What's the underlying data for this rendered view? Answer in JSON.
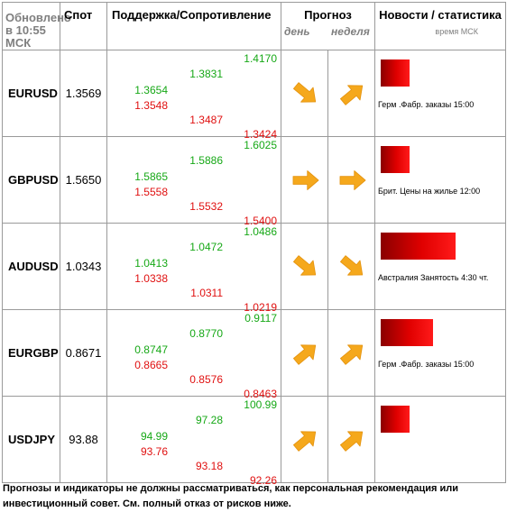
{
  "header": {
    "updated_line1": "Обновлено",
    "updated_line2": "в 10:55 МСК",
    "spot": "Спот",
    "support_resistance": "Поддержка/Сопротивление",
    "forecast": "Прогноз",
    "forecast_day": "день",
    "forecast_week": "неделя",
    "news": "Новости / статистика",
    "news_time": "время МСК"
  },
  "rows": [
    {
      "pair": "EURUSD",
      "spot": "1.3569",
      "sup1": "1.3654",
      "res1": "1.3548",
      "sup2": "1.3831",
      "res2": "1.3487",
      "sup3": "1.4170",
      "res3": "1.3424",
      "day": "down",
      "week": "up",
      "news_level": 0.31,
      "news": "Герм .Фабр. заказы 15:00"
    },
    {
      "pair": "GBPUSD",
      "spot": "1.5650",
      "sup1": "1.5865",
      "res1": "1.5558",
      "sup2": "1.5886",
      "res2": "1.5532",
      "sup3": "1.6025",
      "res3": "1.5400",
      "day": "right",
      "week": "right",
      "news_level": 0.31,
      "news": "Брит. Цены на жилье 12:00"
    },
    {
      "pair": "AUDUSD",
      "spot": "1.0343",
      "sup1": "1.0413",
      "res1": "1.0338",
      "sup2": "1.0472",
      "res2": "1.0311",
      "sup3": "1.0486",
      "res3": "1.0219",
      "day": "down",
      "week": "down",
      "news_level": 0.8,
      "news": "Австралия Занятость 4:30 чт."
    },
    {
      "pair": "EURGBP",
      "spot": "0.8671",
      "sup1": "0.8747",
      "res1": "0.8665",
      "sup2": "0.8770",
      "res2": "0.8576",
      "sup3": "0.9117",
      "res3": "0.8463",
      "day": "up",
      "week": "up",
      "news_level": 0.56,
      "news": "Герм .Фабр. заказы 15:00"
    },
    {
      "pair": "USDJPY",
      "spot": "93.88",
      "sup1": "94.99",
      "res1": "93.76",
      "sup2": "97.28",
      "res2": "93.18",
      "sup3": "100.99",
      "res3": "92.26",
      "day": "up",
      "week": "up",
      "news_level": 0.31,
      "news": ""
    }
  ],
  "disclaimer": "Прогнозы и индикаторы не должны рассматриваться, как персональная рекомендация или инвестиционный совет. См. полный отказ от рисков ниже.",
  "colors": {
    "support": "#16a816",
    "resistance": "#e01010",
    "arrow": "#f5a81c",
    "bar": "#e00000"
  },
  "icons": {
    "up": "arrow-up-right-icon",
    "down": "arrow-down-right-icon",
    "right": "arrow-right-icon"
  }
}
